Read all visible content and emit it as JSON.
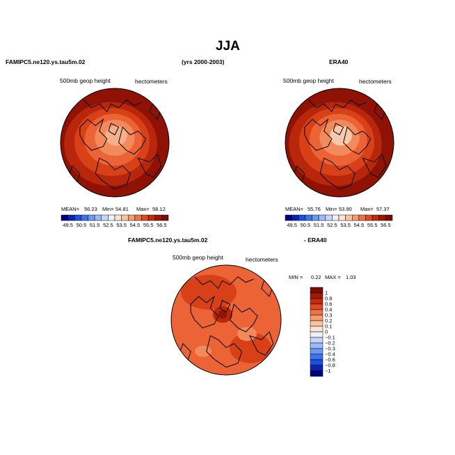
{
  "page": {
    "season": "JJA",
    "model_case": "FAMIPC5.ne120.ys.tau5m.02",
    "years": "(yrs 2000-2003)",
    "obs_name": "ERA40",
    "diff_title_left": "FAMIPC5.ne120.ys.tau5m.02",
    "diff_title_right": "- ERA40"
  },
  "panels": {
    "model": {
      "field": "500mb geop height",
      "units": "hectometers",
      "mean_label": "MEAN=",
      "mean": "56.23",
      "min_label": "Min=",
      "min": "54.81",
      "max_label": "Max=",
      "max": "58.12"
    },
    "obs": {
      "field": "500mb geop height",
      "units": "hectometers",
      "mean_label": "MEAN=",
      "mean": "55.76",
      "min_label": "Min=",
      "min": "53.90",
      "max_label": "Max=",
      "max": "57.37"
    },
    "diff": {
      "field": "500mb geop height",
      "units": "hectometers",
      "min_label": "MIN =",
      "min": "0.22",
      "max_label": "MAX =",
      "max": "1.03"
    }
  },
  "colorbars": {
    "abs_ticks": [
      "49.5",
      "50.5",
      "51.5",
      "52.5",
      "53.5",
      "54.5",
      "55.5",
      "56.5"
    ],
    "abs_colors": [
      "#00007f",
      "#0d23b4",
      "#1f4fdc",
      "#3c74ee",
      "#6c99f4",
      "#9bbaf7",
      "#c4d6f8",
      "#ebf0fb",
      "#fbe3d2",
      "#f9c2a1",
      "#f49c72",
      "#ec7248",
      "#de4a22",
      "#c42a0c",
      "#9b1705",
      "#7a0c02"
    ],
    "diff_ticks": [
      "1",
      "0.8",
      "0.6",
      "0.4",
      "0.3",
      "0.2",
      "0.1",
      "0",
      "−0.1",
      "−0.2",
      "−0.3",
      "−0.4",
      "−0.6",
      "−0.8",
      "−1"
    ],
    "diff_colors": [
      "#7a0c02",
      "#a01a05",
      "#c42a0c",
      "#de4a22",
      "#ec7248",
      "#f49c72",
      "#f9c2a1",
      "#fbe3d2",
      "#ebf0fb",
      "#c4d6f8",
      "#9bbaf7",
      "#6c99f4",
      "#3c74ee",
      "#1f4fdc",
      "#0d23b4",
      "#00007f"
    ]
  },
  "map_fill_colors": {
    "c1": "#8f1204",
    "c2": "#b8260b",
    "c3": "#d84018",
    "c4": "#ec6436",
    "c5": "#f28a5c",
    "c6": "#f7b08a",
    "c7": "#f9c9ad",
    "coast": "#000000"
  }
}
